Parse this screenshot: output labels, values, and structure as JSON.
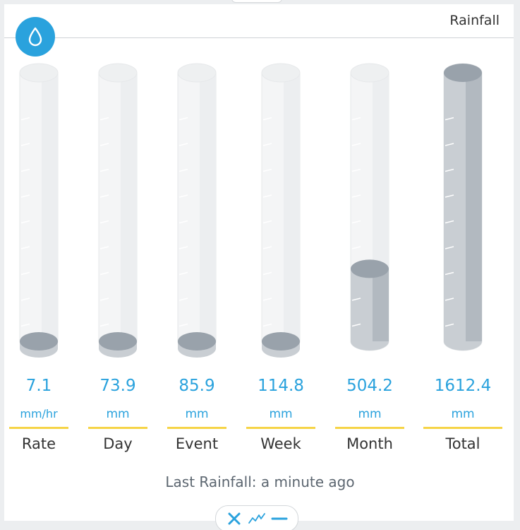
{
  "widget": {
    "title": "Rainfall",
    "icon": "water-drop-icon",
    "accent_color": "#2aa2dd",
    "underline_color": "#f6d447"
  },
  "gauges": [
    {
      "key": "rate",
      "value": "7.1",
      "unit": "mm/hr",
      "label": "Rate",
      "fill_fraction": 0.0
    },
    {
      "key": "day",
      "value": "73.9",
      "unit": "mm",
      "label": "Day",
      "fill_fraction": 0.0
    },
    {
      "key": "event",
      "value": "85.9",
      "unit": "mm",
      "label": "Event",
      "fill_fraction": 0.0
    },
    {
      "key": "week",
      "value": "114.8",
      "unit": "mm",
      "label": "Week",
      "fill_fraction": 0.0
    },
    {
      "key": "month",
      "value": "504.2",
      "unit": "mm",
      "label": "Month",
      "fill_fraction": 0.27
    },
    {
      "key": "total",
      "value": "1612.4",
      "unit": "mm",
      "label": "Total",
      "fill_fraction": 1.0
    }
  ],
  "status": {
    "last_rainfall": "Last Rainfall: a minute ago"
  },
  "toolbar": {
    "buttons": [
      "close-icon",
      "chart-line-icon",
      "minimize-icon"
    ]
  }
}
